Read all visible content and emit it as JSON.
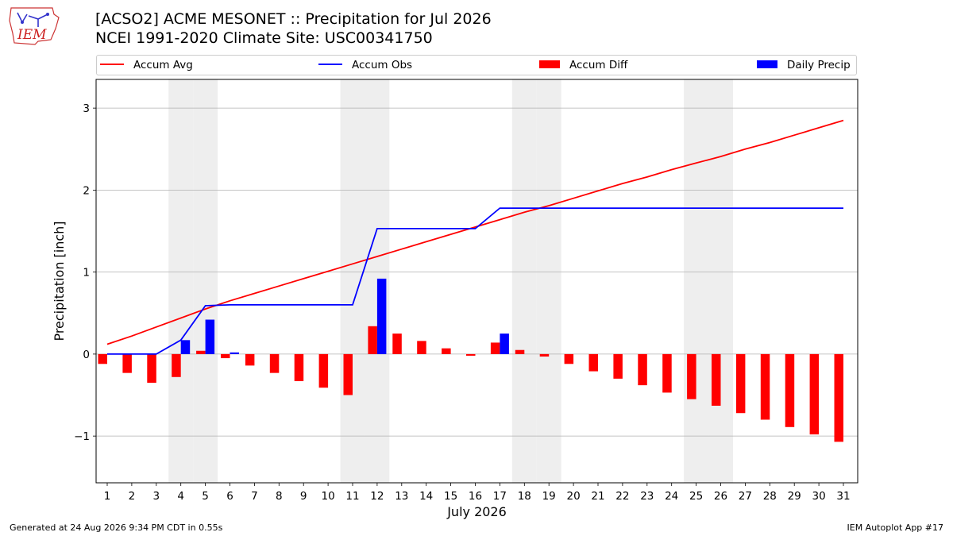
{
  "header": {
    "logo_text": "IEM",
    "title_line1": "[ACSO2] ACME MESONET :: Precipitation for Jul 2026",
    "title_line2": "NCEI 1991-2020 Climate Site: USC00341750"
  },
  "legend": {
    "accum_avg": "Accum Avg",
    "accum_obs": "Accum Obs",
    "accum_diff": "Accum Diff",
    "daily_precip": "Daily Precip"
  },
  "colors": {
    "accum_avg": "#ff0000",
    "accum_obs": "#0000ff",
    "accum_diff": "#ff0000",
    "daily_precip": "#0000ff",
    "weekend_shade": "#eeeeee",
    "grid": "#b0b0b0"
  },
  "footer": {
    "generated": "Generated at 24 Aug 2026 9:34 PM CDT in 0.55s",
    "app": "IEM Autoplot App #17"
  },
  "chart_data": {
    "type": "bar",
    "xlabel": "July 2026",
    "ylabel": "Precipitation [inch]",
    "ylim": [
      -1.57,
      3.35
    ],
    "yticks": [
      -1,
      0,
      1,
      2,
      3
    ],
    "ytick_labels": [
      "−1",
      "0",
      "1",
      "2",
      "3"
    ],
    "grid": "horizontal",
    "legend_position": "top",
    "days": [
      1,
      2,
      3,
      4,
      5,
      6,
      7,
      8,
      9,
      10,
      11,
      12,
      13,
      14,
      15,
      16,
      17,
      18,
      19,
      20,
      21,
      22,
      23,
      24,
      25,
      26,
      27,
      28,
      29,
      30,
      31
    ],
    "shaded_days": [
      4,
      5,
      11,
      12,
      18,
      19,
      25,
      26
    ],
    "series": [
      {
        "name": "Accum Avg",
        "type": "line",
        "values": [
          0.12,
          0.22,
          0.33,
          0.44,
          0.55,
          0.65,
          0.74,
          0.83,
          0.92,
          1.01,
          1.1,
          1.19,
          1.28,
          1.37,
          1.46,
          1.55,
          1.64,
          1.73,
          1.81,
          1.9,
          1.99,
          2.08,
          2.16,
          2.25,
          2.33,
          2.41,
          2.5,
          2.58,
          2.67,
          2.76,
          2.85
        ]
      },
      {
        "name": "Accum Obs",
        "type": "line",
        "values": [
          0.0,
          0.0,
          0.0,
          0.17,
          0.59,
          0.6,
          0.6,
          0.6,
          0.6,
          0.6,
          0.6,
          1.53,
          1.53,
          1.53,
          1.53,
          1.53,
          1.78,
          1.78,
          1.78,
          1.78,
          1.78,
          1.78,
          1.78,
          1.78,
          1.78,
          1.78,
          1.78,
          1.78,
          1.78,
          1.78,
          1.78
        ]
      },
      {
        "name": "Accum Diff",
        "type": "bar",
        "values": [
          -0.12,
          -0.23,
          -0.35,
          -0.28,
          0.04,
          -0.05,
          -0.14,
          -0.23,
          -0.33,
          -0.41,
          -0.5,
          0.34,
          0.25,
          0.16,
          0.07,
          -0.02,
          0.14,
          0.05,
          -0.03,
          -0.12,
          -0.21,
          -0.3,
          -0.38,
          -0.47,
          -0.55,
          -0.63,
          -0.72,
          -0.8,
          -0.89,
          -0.98,
          -1.07
        ]
      },
      {
        "name": "Daily Precip",
        "type": "bar",
        "values": [
          0,
          0,
          0,
          0.17,
          0.42,
          0.02,
          0,
          0,
          0,
          0,
          0,
          0.92,
          0,
          0,
          0,
          0,
          0.25,
          0,
          0,
          0,
          0,
          0,
          0,
          0,
          0,
          0,
          0,
          0,
          0,
          0,
          0
        ]
      }
    ]
  }
}
